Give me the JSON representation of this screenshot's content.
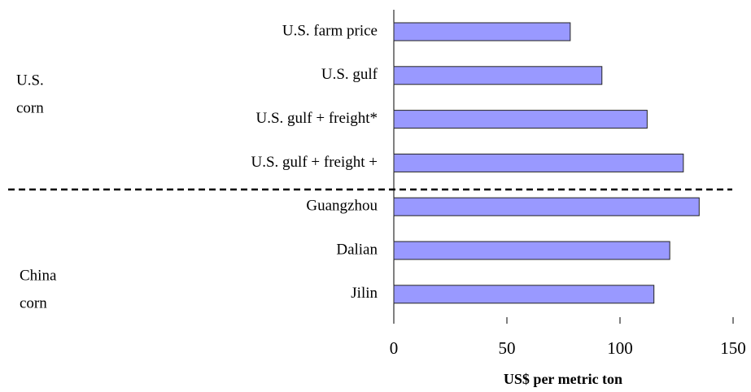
{
  "chart_data": {
    "type": "barh",
    "x_label": "US$ per metric ton",
    "categories": [
      "U.S. farm price",
      "U.S. gulf",
      "U.S. gulf + freight*",
      "U.S. gulf + freight +",
      "Guangzhou",
      "Dalian",
      "Jilin"
    ],
    "values": [
      78,
      92,
      112,
      128,
      135,
      122,
      115
    ],
    "color": "#9999ff",
    "xlim": [
      0,
      150
    ],
    "xticks": [
      0,
      50,
      100,
      150
    ],
    "groups": [
      {
        "lines": [
          "U.S.",
          "corn"
        ]
      },
      {
        "lines": [
          "China",
          "corn"
        ]
      }
    ]
  }
}
